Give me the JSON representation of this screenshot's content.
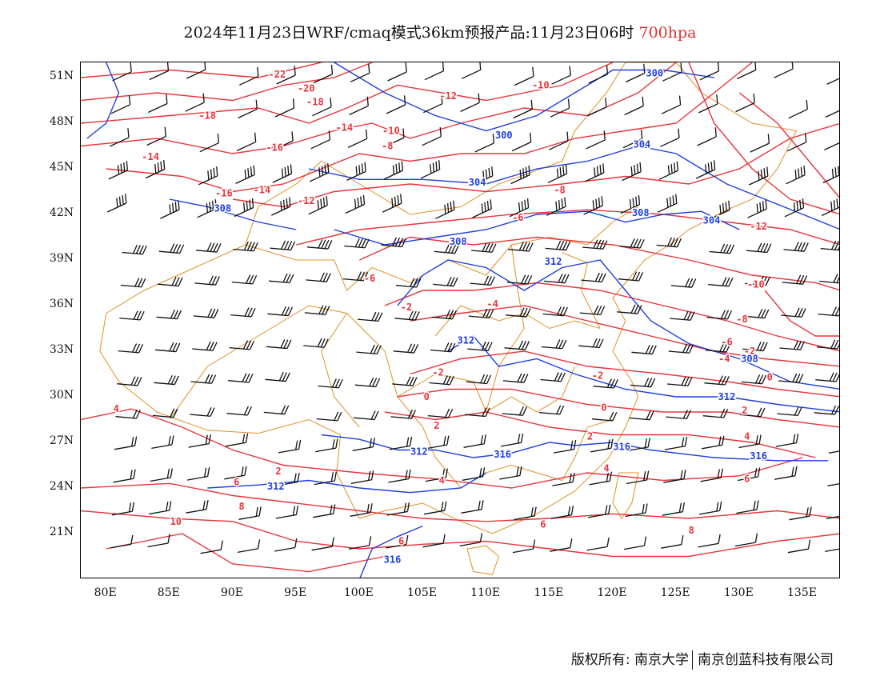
{
  "title": {
    "main": "2024年11月23日WRF/cmaq模式36km预报产品:11月23日06时",
    "level": "700hpa"
  },
  "axes": {
    "lat_labels": [
      "51N",
      "48N",
      "45N",
      "42N",
      "39N",
      "36N",
      "33N",
      "30N",
      "27N",
      "24N",
      "21N"
    ],
    "lat_values": [
      51,
      48,
      45,
      42,
      39,
      36,
      33,
      30,
      27,
      24,
      21
    ],
    "lon_labels": [
      "80E",
      "85E",
      "90E",
      "95E",
      "100E",
      "105E",
      "110E",
      "115E",
      "120E",
      "125E",
      "130E",
      "135E"
    ],
    "lon_values": [
      80,
      85,
      90,
      95,
      100,
      105,
      110,
      115,
      120,
      125,
      130,
      135
    ],
    "lon_range": [
      78,
      138
    ],
    "lat_range": [
      18,
      52
    ]
  },
  "colors": {
    "temperature": "#e8343a",
    "height": "#1f3fe0",
    "boundary": "#e0902a",
    "wind": "#111111"
  },
  "temperature_labels": [
    {
      "t": "-22",
      "lon": 93.5,
      "lat": 51.2
    },
    {
      "t": "-20",
      "lon": 95.8,
      "lat": 50.3
    },
    {
      "t": "-18",
      "lon": 96.5,
      "lat": 49.4
    },
    {
      "t": "-18",
      "lon": 88,
      "lat": 48.5
    },
    {
      "t": "-16",
      "lon": 93.3,
      "lat": 46.4
    },
    {
      "t": "-14",
      "lon": 98.8,
      "lat": 47.7
    },
    {
      "t": "-14",
      "lon": 83.5,
      "lat": 45.8
    },
    {
      "t": "-12",
      "lon": 107,
      "lat": 49.8
    },
    {
      "t": "-10",
      "lon": 114.3,
      "lat": 50.5
    },
    {
      "t": "-10",
      "lon": 102.5,
      "lat": 47.5
    },
    {
      "t": "-8",
      "lon": 102.2,
      "lat": 46.5
    },
    {
      "t": "-16",
      "lon": 89.3,
      "lat": 43.4
    },
    {
      "t": "-14",
      "lon": 92.3,
      "lat": 43.6
    },
    {
      "t": "-12",
      "lon": 95.8,
      "lat": 42.9
    },
    {
      "t": "-8",
      "lon": 115.8,
      "lat": 43.6
    },
    {
      "t": "-6",
      "lon": 112.5,
      "lat": 41.8
    },
    {
      "t": "-6",
      "lon": 100.8,
      "lat": 37.8
    },
    {
      "t": "-2",
      "lon": 103.7,
      "lat": 35.9
    },
    {
      "t": "-4",
      "lon": 110.5,
      "lat": 36.1
    },
    {
      "t": "-12",
      "lon": 131.5,
      "lat": 41.2
    },
    {
      "t": "-10",
      "lon": 131.3,
      "lat": 37.4
    },
    {
      "t": "-8",
      "lon": 130.2,
      "lat": 35.1
    },
    {
      "t": "-6",
      "lon": 129,
      "lat": 33.6
    },
    {
      "t": "-4",
      "lon": 128.8,
      "lat": 32.5
    },
    {
      "t": "-2",
      "lon": 130.8,
      "lat": 33.0
    },
    {
      "t": "0",
      "lon": 132.4,
      "lat": 31.3
    },
    {
      "t": "-2",
      "lon": 106.2,
      "lat": 31.6
    },
    {
      "t": "-2",
      "lon": 118.8,
      "lat": 31.4
    },
    {
      "t": "0",
      "lon": 105.3,
      "lat": 30.0
    },
    {
      "t": "0",
      "lon": 119.3,
      "lat": 29.3
    },
    {
      "t": "2",
      "lon": 130.4,
      "lat": 29.1
    },
    {
      "t": "2",
      "lon": 106.1,
      "lat": 28.1
    },
    {
      "t": "2",
      "lon": 118.2,
      "lat": 27.4
    },
    {
      "t": "4",
      "lon": 80.8,
      "lat": 29.2
    },
    {
      "t": "4",
      "lon": 130.6,
      "lat": 27.4
    },
    {
      "t": "2",
      "lon": 93.6,
      "lat": 25.1
    },
    {
      "t": "6",
      "lon": 90.3,
      "lat": 24.4
    },
    {
      "t": "4",
      "lon": 106.5,
      "lat": 24.5
    },
    {
      "t": "4",
      "lon": 119.5,
      "lat": 25.3
    },
    {
      "t": "6",
      "lon": 130.6,
      "lat": 24.6
    },
    {
      "t": "8",
      "lon": 90.7,
      "lat": 22.8
    },
    {
      "t": "6",
      "lon": 114.5,
      "lat": 21.6
    },
    {
      "t": "10",
      "lon": 85.5,
      "lat": 21.8
    },
    {
      "t": "6",
      "lon": 103.3,
      "lat": 20.5
    },
    {
      "t": "8",
      "lon": 126.2,
      "lat": 21.2
    }
  ],
  "height_labels": [
    {
      "t": "300",
      "lon": 123.3,
      "lat": 51.3
    },
    {
      "t": "300",
      "lon": 111.4,
      "lat": 47.2
    },
    {
      "t": "304",
      "lon": 122.3,
      "lat": 46.6
    },
    {
      "t": "304",
      "lon": 109.3,
      "lat": 44.1
    },
    {
      "t": "308",
      "lon": 89.2,
      "lat": 42.4
    },
    {
      "t": "308",
      "lon": 107.8,
      "lat": 40.2
    },
    {
      "t": "308",
      "lon": 122.2,
      "lat": 42.1
    },
    {
      "t": "304",
      "lon": 127.8,
      "lat": 41.6
    },
    {
      "t": "312",
      "lon": 115.3,
      "lat": 38.9
    },
    {
      "t": "312",
      "lon": 108.4,
      "lat": 33.7
    },
    {
      "t": "308",
      "lon": 130.8,
      "lat": 32.5
    },
    {
      "t": "312",
      "lon": 129,
      "lat": 30.0
    },
    {
      "t": "312",
      "lon": 104.7,
      "lat": 26.4
    },
    {
      "t": "316",
      "lon": 111.3,
      "lat": 26.2
    },
    {
      "t": "316",
      "lon": 120.7,
      "lat": 26.7
    },
    {
      "t": "316",
      "lon": 131.5,
      "lat": 26.1
    },
    {
      "t": "312",
      "lon": 93.4,
      "lat": 24.1
    },
    {
      "t": "316",
      "lon": 102.6,
      "lat": 19.3
    }
  ],
  "footer": {
    "left": "版权所有: 南京大学",
    "right": "南京创蓝科技有限公司"
  }
}
